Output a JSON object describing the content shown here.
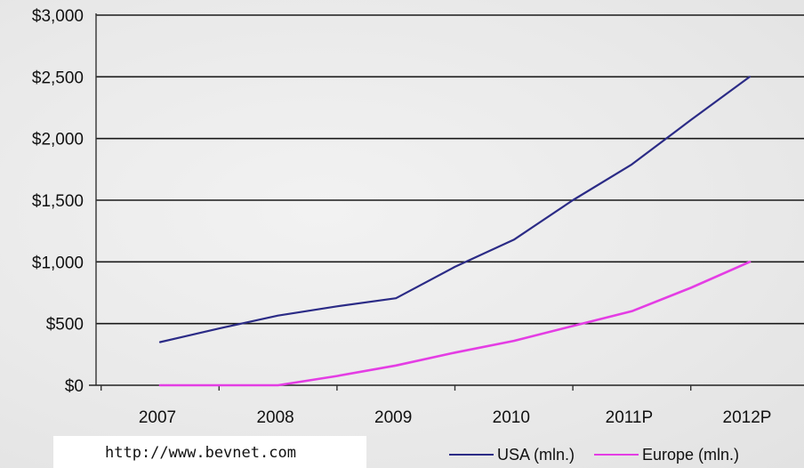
{
  "chart_data": {
    "type": "line",
    "categories": [
      "2007",
      "2008",
      "2009",
      "2010",
      "2011P",
      "2012P"
    ],
    "series": [
      {
        "name": "USA (mln.)",
        "color": "#2b2b86",
        "x": [
          2007,
          2007.5,
          2008,
          2008.5,
          2009,
          2009.5,
          2010,
          2010.5,
          2011,
          2011.5,
          2012
        ],
        "values": [
          350,
          460,
          565,
          640,
          705,
          960,
          1180,
          1500,
          1790,
          2150,
          2500
        ]
      },
      {
        "name": "Europe (mln.)",
        "color": "#e43de4",
        "x": [
          2007,
          2008,
          2008.5,
          2009,
          2009.5,
          2010,
          2010.5,
          2011,
          2011.5,
          2012
        ],
        "values": [
          0,
          0,
          75,
          160,
          265,
          360,
          480,
          600,
          790,
          1000
        ]
      }
    ],
    "y_ticks": [
      "$3,000",
      "$2,500",
      "$2,000",
      "$1,500",
      "$1,000",
      "$500",
      "$0"
    ],
    "ylim": [
      0,
      3000
    ],
    "xlim": [
      2007,
      2012
    ],
    "grid": true,
    "legend_position": "bottom-right"
  },
  "source": "http://www.bevnet.com"
}
